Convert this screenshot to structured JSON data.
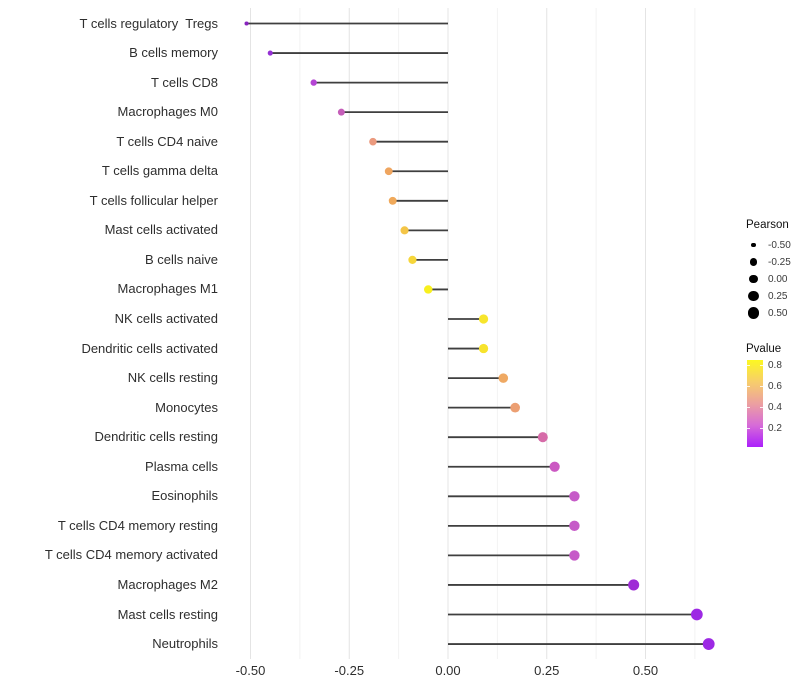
{
  "chart_data": {
    "type": "lollipop",
    "title": "",
    "xlabel": "",
    "ylabel": "",
    "orientation": "horizontal",
    "baseline": 0,
    "xlim": [
      -0.57,
      0.72
    ],
    "grid": "vertical-only",
    "x_axis": {
      "tick_labels": [
        "-0.50",
        "-0.25",
        "0.00",
        "0.25",
        "0.50"
      ],
      "tick_values": [
        -0.5,
        -0.25,
        0,
        0.25,
        0.5
      ],
      "minor_tick_values": [
        -0.375,
        -0.125,
        0.125,
        0.375,
        0.625
      ]
    },
    "categories": [
      "T cells regulatory  Tregs",
      "B cells memory",
      "T cells CD8",
      "Macrophages M0",
      "T cells CD4 naive",
      "T cells gamma delta",
      "T cells follicular helper",
      "Mast cells activated",
      "B cells naive",
      "Macrophages M1",
      "NK cells activated",
      "Dendritic cells activated",
      "NK cells resting",
      "Monocytes",
      "Dendritic cells resting",
      "Plasma cells",
      "Eosinophils",
      "T cells CD4 memory resting",
      "T cells CD4 memory activated",
      "Macrophages M2",
      "Mast cells resting",
      "Neutrophils"
    ],
    "series": [
      {
        "name": "T cells regulatory  Tregs",
        "pearson": -0.51,
        "color": "#8824BE"
      },
      {
        "name": "B cells memory",
        "pearson": -0.45,
        "color": "#9530D4"
      },
      {
        "name": "T cells CD8",
        "pearson": -0.34,
        "color": "#B444D4"
      },
      {
        "name": "Macrophages M0",
        "pearson": -0.27,
        "color": "#C55EB9"
      },
      {
        "name": "T cells CD4 naive",
        "pearson": -0.19,
        "color": "#EB9A7E"
      },
      {
        "name": "T cells gamma delta",
        "pearson": -0.15,
        "color": "#EFA55F"
      },
      {
        "name": "T cells follicular helper",
        "pearson": -0.14,
        "color": "#F0A95A"
      },
      {
        "name": "Mast cells activated",
        "pearson": -0.11,
        "color": "#F4C547"
      },
      {
        "name": "B cells naive",
        "pearson": -0.09,
        "color": "#F6D63A"
      },
      {
        "name": "Macrophages M1",
        "pearson": -0.05,
        "color": "#F8F01E"
      },
      {
        "name": "NK cells activated",
        "pearson": 0.09,
        "color": "#F7E52C"
      },
      {
        "name": "Dendritic cells activated",
        "pearson": 0.09,
        "color": "#F7E32D"
      },
      {
        "name": "NK cells resting",
        "pearson": 0.14,
        "color": "#EFA963"
      },
      {
        "name": "Monocytes",
        "pearson": 0.17,
        "color": "#EC9F72"
      },
      {
        "name": "Dendritic cells resting",
        "pearson": 0.24,
        "color": "#D66BA8"
      },
      {
        "name": "Plasma cells",
        "pearson": 0.27,
        "color": "#CB58C2"
      },
      {
        "name": "Eosinophils",
        "pearson": 0.32,
        "color": "#C65BC8"
      },
      {
        "name": "T cells CD4 memory resting",
        "pearson": 0.32,
        "color": "#C65BC8"
      },
      {
        "name": "T cells CD4 memory activated",
        "pearson": 0.32,
        "color": "#C65BC8"
      },
      {
        "name": "Macrophages M2",
        "pearson": 0.47,
        "color": "#9E2BD6"
      },
      {
        "name": "Mast cells resting",
        "pearson": 0.63,
        "color": "#9D29E4"
      },
      {
        "name": "Neutrophils",
        "pearson": 0.66,
        "color": "#9D29E4"
      }
    ],
    "segment_color": "#3f3f3f",
    "grid_major_color": "#e4e4e4",
    "grid_minor_color": "#f2f2f2"
  },
  "legend": {
    "pearson": {
      "title": "Pearson",
      "items": [
        {
          "label": "-0.50",
          "value": -0.5
        },
        {
          "label": "-0.25",
          "value": -0.25
        },
        {
          "label": "0.00",
          "value": 0.0
        },
        {
          "label": "0.25",
          "value": 0.25
        },
        {
          "label": "0.50",
          "value": 0.5
        }
      ],
      "dot_color": "#000000"
    },
    "pvalue": {
      "title": "Pvalue",
      "tick_labels": [
        "0.8",
        "0.6",
        "0.4",
        "0.2"
      ],
      "gradient_top_to_bottom": [
        "#FCF821",
        "#F7CE6B",
        "#ECA0A0",
        "#D66BD8",
        "#AB20FB"
      ]
    }
  }
}
